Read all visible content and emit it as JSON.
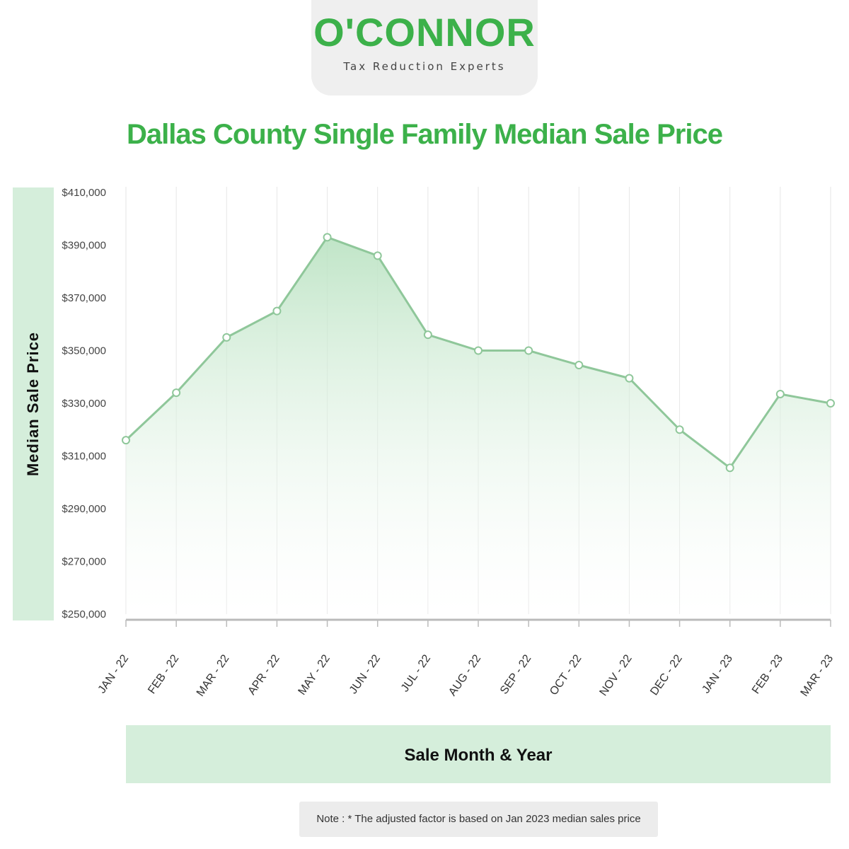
{
  "logo": {
    "word": "O'CONNOR",
    "tagline": "Tax Reduction Experts",
    "brand_color": "#3cb14a"
  },
  "colors": {
    "title": "#3cb14a",
    "line": "#8fc79a",
    "band": "#d5eedb",
    "grid": "#e6e6e6",
    "axis": "#bbbbbb"
  },
  "note": "Note : * The adjusted factor is based on Jan 2023 median sales price",
  "chart_data": {
    "type": "area",
    "title": "Dallas County Single Family Median Sale Price",
    "xlabel": "Sale Month & Year",
    "ylabel": "Median Sale Price",
    "categories": [
      "JAN - 22",
      "FEB - 22",
      "MAR - 22",
      "APR - 22",
      "MAY - 22",
      "JUN - 22",
      "JUL - 22",
      "AUG - 22",
      "SEP - 22",
      "OCT - 22",
      "NOV - 22",
      "DEC - 22",
      "JAN - 23",
      "FEB - 23",
      "MAR - 23"
    ],
    "values": [
      316000,
      334000,
      355000,
      365000,
      393000,
      386000,
      356000,
      350000,
      350000,
      344500,
      339500,
      320000,
      305500,
      333500,
      330000
    ],
    "ylim": [
      250000,
      410000
    ],
    "yticks": [
      "$410,000",
      "$390,000",
      "$370,000",
      "$350,000",
      "$330,000",
      "$310,000",
      "$290,000",
      "$270,000",
      "$250,000"
    ],
    "ytick_values": [
      410000,
      390000,
      370000,
      350000,
      330000,
      310000,
      290000,
      270000,
      250000
    ],
    "grid": "vertical",
    "legend": "none"
  }
}
